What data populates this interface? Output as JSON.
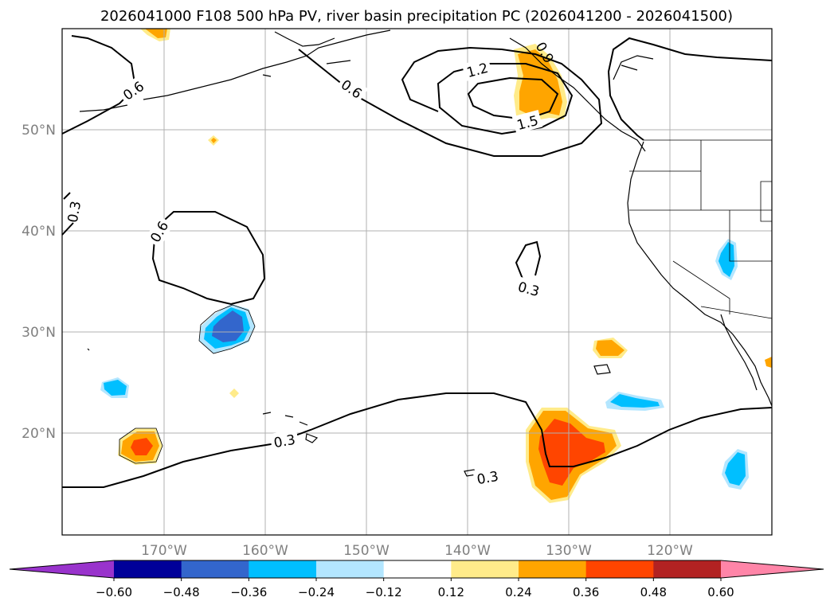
{
  "title": "2026041000 F108 500 hPa PV, river basin precipitation PC (2026041200 - 2026041500)",
  "lon_labels": [
    "170°W",
    "160°W",
    "150°W",
    "140°W",
    "130°W",
    "120°W"
  ],
  "lat_labels": [
    "50°N",
    "40°N",
    "30°N",
    "20°N"
  ],
  "contour_labels": [
    "0.6",
    "0.6",
    "1.2",
    "0.9",
    "1.5",
    "0.3",
    "0.6",
    "0.3",
    "0.3",
    "0.3"
  ],
  "colorbar": {
    "colors": [
      "#9933cc",
      "#000099",
      "#3366cc",
      "#00bfff",
      "#b3e6ff",
      "#ffffff",
      "#ffeb8a",
      "#ffa500",
      "#ff4500",
      "#b22222",
      "#ff85a8"
    ],
    "tick_labels": [
      "−0.60",
      "−0.48",
      "−0.36",
      "−0.24",
      "−0.12",
      "0.12",
      "0.24",
      "0.36",
      "0.48",
      "0.60"
    ]
  },
  "colors": {
    "grid": "#b0b0b0",
    "coast": "#000000",
    "contour": "#000000",
    "label_gray": "#7f7f7f"
  }
}
